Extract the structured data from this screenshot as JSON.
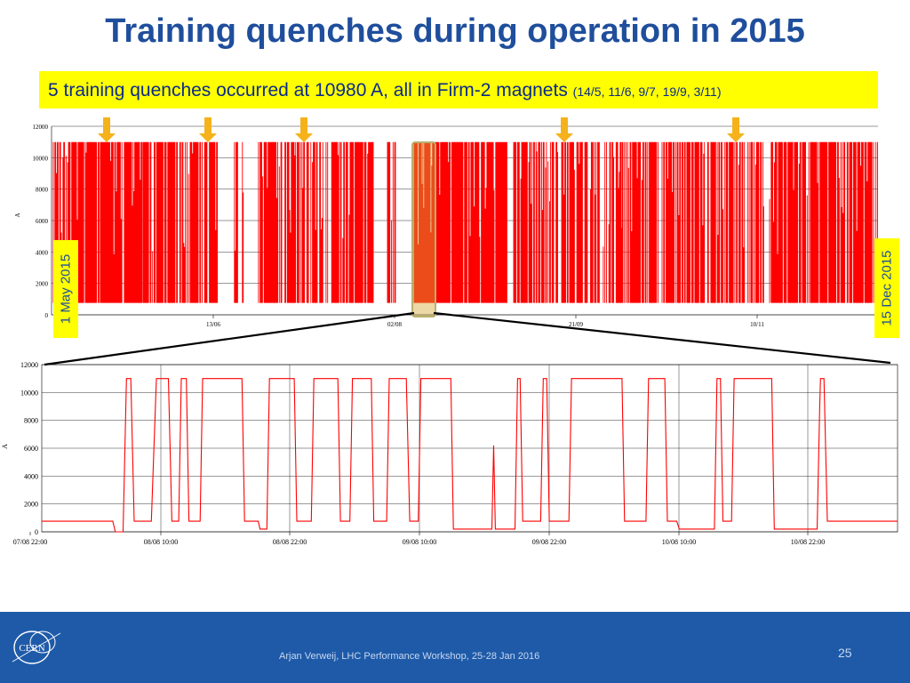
{
  "slide": {
    "title": "Training quenches during operation in 2015",
    "banner_main": "5 training quenches occurred at 10980 A, all in Firm-2 magnets",
    "banner_dates": "(14/5, 11/6, 9/7, 19/9, 3/11)",
    "left_date": "1 May 2015",
    "right_date": "15 Dec 2015",
    "footer": "Arjan Verweij, LHC Performance Workshop, 25-28 Jan 2016",
    "page": "25",
    "logo_text": "CERN"
  },
  "colors": {
    "title": "#1f4e9c",
    "banner": "#ffff00",
    "arrow": "#f5b21b",
    "trace": "#ff0000",
    "footer": "#1e5aa8"
  },
  "chart_data": [
    {
      "type": "line",
      "ylabel": "A",
      "ylim": [
        0,
        12000
      ],
      "yticks": [
        "0",
        "2000",
        "4000",
        "6000",
        "8000",
        "10000",
        "12000"
      ],
      "xticks": [
        "13/06",
        "02/08",
        "21/09",
        "10/11"
      ],
      "quench_markers": [
        "14/5",
        "11/6",
        "9/7",
        "19/9",
        "3/11"
      ],
      "highlight": "zoom region shown in lower chart",
      "series": [
        {
          "plateau": 11000,
          "injection": 760
        }
      ]
    },
    {
      "type": "line",
      "ylabel": "A",
      "ylim": [
        0,
        12000
      ],
      "yticks": [
        "0",
        "2000",
        "4000",
        "6000",
        "8000",
        "10000",
        "12000"
      ],
      "xticks": [
        "07/08 22:00",
        "08/08 10:00",
        "08/08 22:00",
        "09/08 10:00",
        "09/08 22:00",
        "10/08 10:00",
        "10/08 22:00"
      ],
      "series": [
        {
          "points": [
            [
              0,
              760
            ],
            [
              8.3,
              760
            ],
            [
              8.6,
              0
            ],
            [
              9.5,
              0
            ],
            [
              9.9,
              11000
            ],
            [
              10.4,
              11000
            ],
            [
              10.8,
              760
            ],
            [
              12.8,
              760
            ],
            [
              13.4,
              11000
            ],
            [
              14.8,
              11000
            ],
            [
              15.2,
              760
            ],
            [
              16.0,
              760
            ],
            [
              16.3,
              11000
            ],
            [
              16.9,
              11000
            ],
            [
              17.2,
              760
            ],
            [
              18.5,
              760
            ],
            [
              18.8,
              11000
            ],
            [
              23.4,
              11000
            ],
            [
              23.7,
              760
            ],
            [
              25.3,
              760
            ],
            [
              25.5,
              200
            ],
            [
              26.3,
              200
            ],
            [
              26.6,
              11000
            ],
            [
              29.5,
              11000
            ],
            [
              29.8,
              760
            ],
            [
              31.5,
              760
            ],
            [
              31.8,
              11000
            ],
            [
              34.6,
              11000
            ],
            [
              34.9,
              760
            ],
            [
              36.0,
              760
            ],
            [
              36.3,
              11000
            ],
            [
              38.5,
              11000
            ],
            [
              38.8,
              760
            ],
            [
              40.3,
              760
            ],
            [
              40.6,
              11000
            ],
            [
              42.6,
              11000
            ],
            [
              43.0,
              760
            ],
            [
              44.0,
              760
            ],
            [
              44.3,
              11000
            ],
            [
              47.8,
              11000
            ],
            [
              48.1,
              200
            ],
            [
              52.6,
              200
            ],
            [
              52.8,
              6200
            ],
            [
              53.0,
              200
            ],
            [
              55.3,
              200
            ],
            [
              55.6,
              11000
            ],
            [
              55.9,
              11000
            ],
            [
              56.2,
              760
            ],
            [
              58.3,
              760
            ],
            [
              58.6,
              11000
            ],
            [
              59.0,
              11000
            ],
            [
              59.3,
              760
            ],
            [
              61.6,
              760
            ],
            [
              61.9,
              11000
            ],
            [
              67.8,
              11000
            ],
            [
              68.1,
              760
            ],
            [
              70.6,
              760
            ],
            [
              70.9,
              11000
            ],
            [
              72.8,
              11000
            ],
            [
              73.1,
              760
            ],
            [
              74.2,
              760
            ],
            [
              74.5,
              200
            ],
            [
              78.6,
              200
            ],
            [
              78.9,
              11000
            ],
            [
              79.3,
              11000
            ],
            [
              79.6,
              760
            ],
            [
              80.6,
              760
            ],
            [
              80.9,
              11000
            ],
            [
              85.3,
              11000
            ],
            [
              85.6,
              200
            ],
            [
              90.6,
              200
            ],
            [
              90.9,
              9000
            ],
            [
              91.0,
              11000
            ],
            [
              91.4,
              11000
            ],
            [
              91.8,
              760
            ],
            [
              100,
              760
            ]
          ]
        }
      ]
    }
  ]
}
